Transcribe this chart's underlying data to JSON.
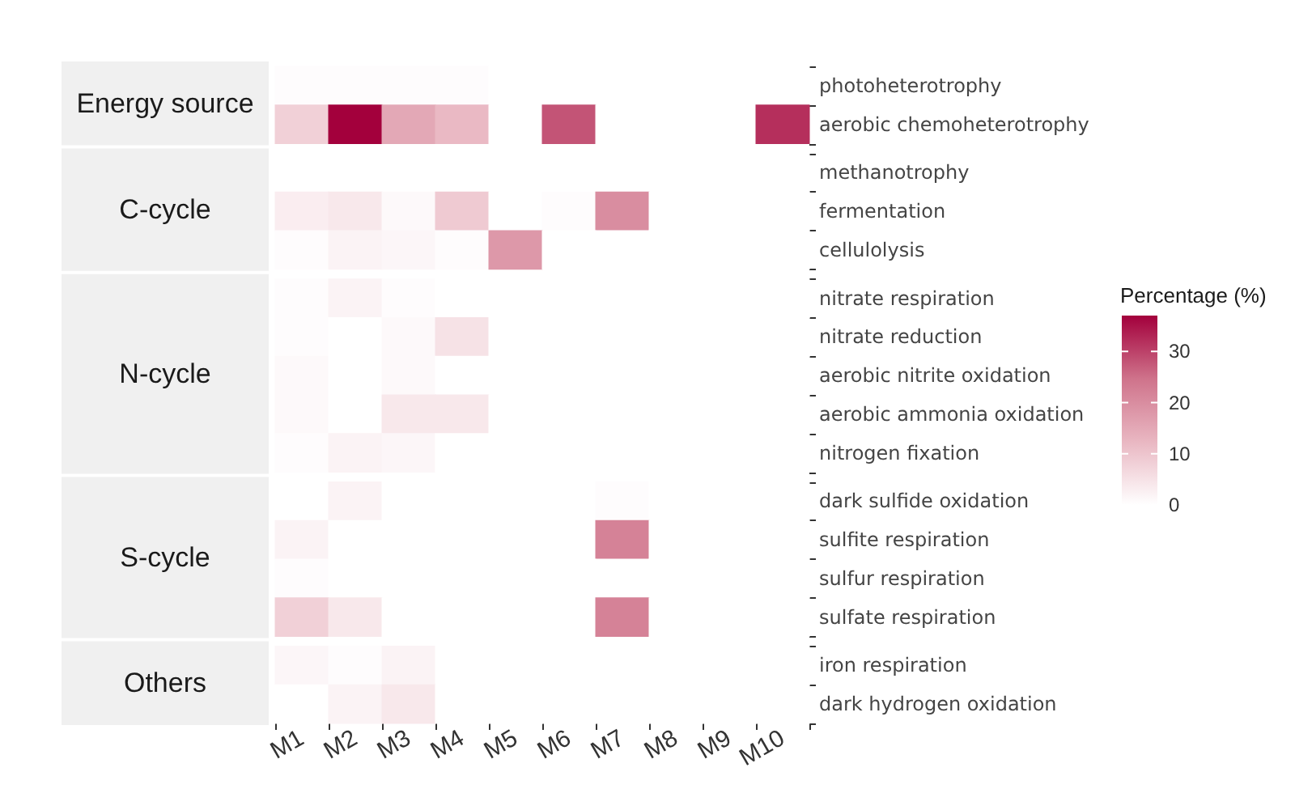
{
  "chart_data": {
    "type": "heatmap",
    "categories": [
      "M1",
      "M2",
      "M3",
      "M4",
      "M5",
      "M6",
      "M7",
      "M8",
      "M9",
      "M10"
    ],
    "y_categories": [
      "photoheterotrophy",
      "aerobic chemoheterotrophy",
      "methanotrophy",
      "fermentation",
      "cellulolysis",
      "nitrate respiration",
      "nitrate reduction",
      "aerobic nitrite oxidation",
      "aerobic ammonia oxidation",
      "nitrogen fixation",
      "dark sulfide oxidation",
      "sulfite respiration",
      "sulfur respiration",
      "sulfate respiration",
      "iron respiration",
      "dark hydrogen oxidation"
    ],
    "cells": [
      [
        0.5,
        0.5,
        0.5,
        0.5,
        0,
        0,
        0,
        0,
        0,
        0
      ],
      [
        8,
        37,
        15,
        12,
        0,
        28,
        0,
        0,
        0,
        32
      ],
      [
        0,
        0,
        0,
        0,
        0,
        0,
        0,
        0,
        0,
        0
      ],
      [
        3,
        4,
        1,
        9,
        0,
        0.5,
        20,
        0,
        0,
        0
      ],
      [
        0.5,
        2,
        1.5,
        0.5,
        18,
        0,
        0,
        0,
        0,
        0
      ],
      [
        0.5,
        2,
        0.5,
        0,
        0,
        0,
        0,
        0,
        0,
        0
      ],
      [
        0.5,
        0,
        1,
        5,
        0,
        0,
        0,
        0,
        0,
        0
      ],
      [
        1,
        0,
        1,
        0,
        0,
        0,
        0,
        0,
        0,
        0
      ],
      [
        1,
        0,
        4,
        4,
        0,
        0,
        0,
        0,
        0,
        0
      ],
      [
        0.5,
        2,
        1.5,
        0,
        0,
        0,
        0,
        0,
        0,
        0
      ],
      [
        0,
        2,
        0,
        0,
        0,
        0,
        0.5,
        0,
        0,
        0
      ],
      [
        2,
        0,
        0,
        0,
        0,
        0,
        22,
        0,
        0,
        0
      ],
      [
        0.5,
        0,
        0,
        0,
        0,
        0,
        0,
        0,
        0,
        0
      ],
      [
        8,
        4,
        0,
        0,
        0,
        0,
        22,
        0,
        0,
        0
      ],
      [
        1.5,
        0.5,
        2,
        0,
        0,
        0,
        0,
        0,
        0,
        0
      ],
      [
        0,
        2,
        4,
        0,
        0,
        0,
        0,
        0,
        0,
        0
      ]
    ],
    "clim": [
      0,
      37
    ],
    "cticks": [
      0,
      10,
      20,
      30
    ],
    "clabel": "Percentage (%)",
    "annotations": [
      "Energy source",
      "C-cycle",
      "N-cycle",
      "S-cycle",
      "Others"
    ]
  }
}
